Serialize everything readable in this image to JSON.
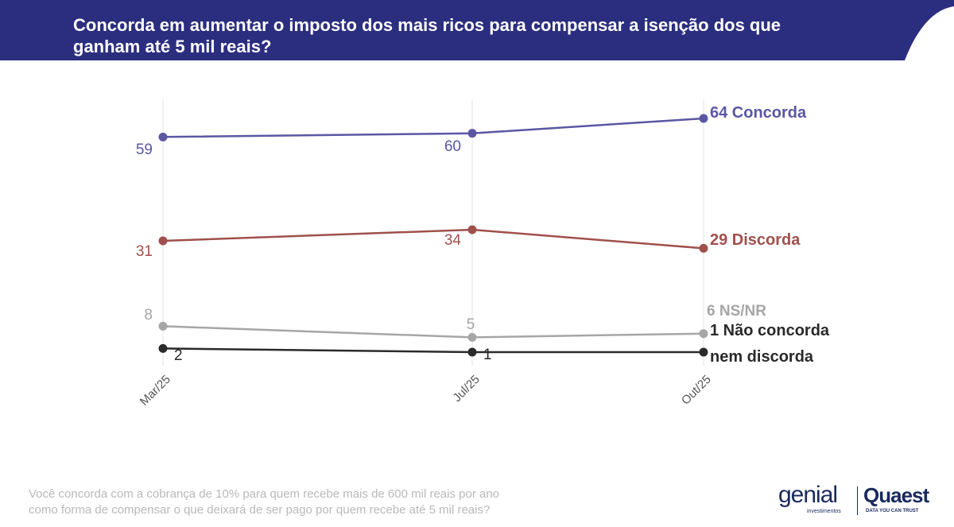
{
  "header": {
    "title": "Concorda em aumentar o imposto dos mais ricos para compensar a isenção dos que ganham até 5 mil reais?",
    "bg_color": "#2b2e7f"
  },
  "chart_data": {
    "type": "line",
    "title": "Concorda em aumentar o imposto dos mais ricos para compensar a isenção dos que ganham até 5 mil reais?",
    "categories": [
      "Mar/25",
      "Jul/25",
      "Out/25"
    ],
    "ylim": [
      0,
      70
    ],
    "grid": "vertical",
    "series": [
      {
        "key": "concorda",
        "name": "Concorda",
        "values": [
          59,
          60,
          64
        ],
        "color": "#5b57a3",
        "value_labels": [
          "59",
          "60",
          "64"
        ],
        "end_label": "64 Concorda"
      },
      {
        "key": "discorda",
        "name": "Discorda",
        "values": [
          31,
          34,
          29
        ],
        "color": "#a0504c",
        "value_labels": [
          "31",
          "34",
          "29"
        ],
        "end_label": "29 Discorda"
      },
      {
        "key": "nsnr",
        "name": "NS/NR",
        "values": [
          8,
          5,
          6
        ],
        "color": "#a6a6a6",
        "value_labels": [
          "8",
          "5",
          "6"
        ],
        "end_label": "6 NS/NR"
      },
      {
        "key": "neutro",
        "name": "Não concorda nem discorda",
        "values": [
          2,
          1,
          1
        ],
        "color": "#2a2a2a",
        "value_labels": [
          "2",
          "1",
          "1"
        ],
        "end_label_lines": [
          "1 Não concorda",
          "nem discorda"
        ]
      }
    ]
  },
  "footnote": {
    "line1": "Você concorda com a cobrança de 10% para quem recebe mais de 600 mil reais por ano",
    "line2": "como forma de compensar o que deixará de ser pago por quem recebe até 5 mil reais?"
  },
  "logos": {
    "genial": "genial",
    "genial_sub": "investimentos",
    "quaest": "Quaest",
    "quaest_sub": "DATA YOU CAN TRUST"
  }
}
